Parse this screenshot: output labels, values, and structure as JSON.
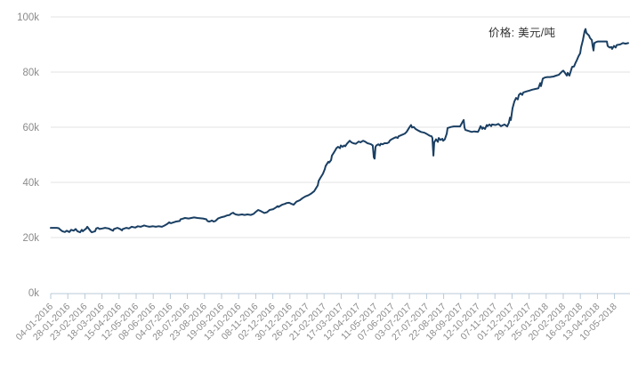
{
  "chart_data": {
    "type": "line",
    "title": "",
    "legend": "价格: 美元/吨",
    "legend_position": "top-right-inside",
    "grid": "horizontal",
    "colors": {
      "line": "#1a3f63",
      "grid": "#e3e3e3",
      "axis": "#b7c9d9",
      "tick_label": "#8b8b8b",
      "legend_text": "#333333",
      "background": "#ffffff"
    },
    "y_axis": {
      "label": "",
      "unit": "美元/吨 (k = ×1000)",
      "ylim_k": [
        0,
        100
      ],
      "ticks": [
        {
          "label": "100k",
          "value": 100
        },
        {
          "label": "80k",
          "value": 80
        },
        {
          "label": "60k",
          "value": 60
        },
        {
          "label": "40k",
          "value": 40
        },
        {
          "label": "20k",
          "value": 20
        },
        {
          "label": "0k",
          "value": 0
        }
      ]
    },
    "x_axis": {
      "label": "",
      "tick_labels": [
        "04-01-2016",
        "28-01-2016",
        "23-02-2016",
        "18-03-2016",
        "15-04-2016",
        "12-05-2016",
        "08-06-2016",
        "04-07-2016",
        "28-07-2016",
        "23-08-2016",
        "19-09-2016",
        "13-10-2016",
        "08-11-2016",
        "02-12-2016",
        "30-12-2016",
        "26-01-2017",
        "21-02-2017",
        "17-03-2017",
        "12-04-2017",
        "11-05-2017",
        "07-06-2017",
        "03-07-2017",
        "27-07-2017",
        "22-08-2017",
        "18-09-2017",
        "12-10-2017",
        "07-11-2017",
        "01-12-2017",
        "29-12-2017",
        "25-01-2018",
        "20-02-2018",
        "16-03-2018",
        "13-04-2018",
        "10-05-2018"
      ]
    },
    "series": [
      {
        "name": "价格: 美元/吨",
        "unit": "美元/吨",
        "values_in": "thousands of USD per ton; x in tick-index units of the date axis",
        "color": "#1a3f63",
        "points": [
          [
            0,
            23.5
          ],
          [
            0.35,
            23.5
          ],
          [
            0.47,
            23.4
          ],
          [
            0.57,
            22.8
          ],
          [
            0.68,
            22.3
          ],
          [
            0.83,
            22.0
          ],
          [
            0.94,
            22.5
          ],
          [
            1.09,
            22.0
          ],
          [
            1.2,
            22.8
          ],
          [
            1.35,
            22.5
          ],
          [
            1.46,
            23.1
          ],
          [
            1.56,
            22.3
          ],
          [
            1.72,
            21.9
          ],
          [
            1.82,
            22.8
          ],
          [
            1.88,
            22.3
          ],
          [
            2.08,
            23.3
          ],
          [
            2.14,
            23.9
          ],
          [
            2.24,
            23.1
          ],
          [
            2.34,
            22.3
          ],
          [
            2.4,
            21.9
          ],
          [
            2.6,
            22.3
          ],
          [
            2.66,
            23.3
          ],
          [
            2.76,
            23.5
          ],
          [
            2.86,
            23.1
          ],
          [
            3.02,
            23.3
          ],
          [
            3.18,
            23.5
          ],
          [
            3.39,
            23.3
          ],
          [
            3.54,
            22.8
          ],
          [
            3.65,
            22.5
          ],
          [
            3.7,
            23.1
          ],
          [
            3.91,
            23.5
          ],
          [
            4.06,
            23.1
          ],
          [
            4.17,
            22.6
          ],
          [
            4.22,
            23.1
          ],
          [
            4.43,
            23.5
          ],
          [
            4.58,
            23.3
          ],
          [
            4.74,
            23.9
          ],
          [
            4.95,
            23.6
          ],
          [
            5.1,
            24.1
          ],
          [
            5.26,
            23.9
          ],
          [
            5.47,
            24.4
          ],
          [
            5.63,
            24.1
          ],
          [
            5.78,
            23.9
          ],
          [
            5.99,
            24.1
          ],
          [
            6.15,
            23.9
          ],
          [
            6.3,
            24.1
          ],
          [
            6.51,
            23.9
          ],
          [
            6.67,
            24.4
          ],
          [
            6.82,
            24.9
          ],
          [
            6.93,
            25.5
          ],
          [
            7.03,
            25.2
          ],
          [
            7.19,
            25.5
          ],
          [
            7.34,
            25.8
          ],
          [
            7.55,
            26.0
          ],
          [
            7.6,
            26.6
          ],
          [
            7.71,
            26.8
          ],
          [
            7.86,
            27.1
          ],
          [
            8.07,
            26.9
          ],
          [
            8.23,
            27.1
          ],
          [
            8.39,
            27.3
          ],
          [
            8.59,
            27.1
          ],
          [
            8.91,
            26.9
          ],
          [
            9.11,
            26.6
          ],
          [
            9.17,
            26.0
          ],
          [
            9.27,
            25.8
          ],
          [
            9.38,
            26.0
          ],
          [
            9.43,
            26.2
          ],
          [
            9.53,
            25.8
          ],
          [
            9.64,
            26.0
          ],
          [
            9.79,
            26.9
          ],
          [
            9.95,
            27.3
          ],
          [
            10.16,
            27.6
          ],
          [
            10.31,
            28.0
          ],
          [
            10.47,
            28.2
          ],
          [
            10.57,
            28.7
          ],
          [
            10.68,
            29.0
          ],
          [
            10.73,
            28.7
          ],
          [
            10.83,
            28.4
          ],
          [
            10.99,
            28.2
          ],
          [
            11.2,
            28.4
          ],
          [
            11.35,
            28.2
          ],
          [
            11.51,
            28.4
          ],
          [
            11.72,
            28.2
          ],
          [
            11.88,
            28.6
          ],
          [
            11.98,
            29.2
          ],
          [
            12.14,
            30.0
          ],
          [
            12.29,
            29.6
          ],
          [
            12.5,
            28.9
          ],
          [
            12.66,
            29.2
          ],
          [
            12.81,
            30.0
          ],
          [
            13.02,
            30.3
          ],
          [
            13.18,
            30.9
          ],
          [
            13.28,
            31.4
          ],
          [
            13.33,
            31.1
          ],
          [
            13.54,
            31.9
          ],
          [
            13.7,
            32.2
          ],
          [
            13.8,
            32.5
          ],
          [
            13.96,
            32.6
          ],
          [
            14.06,
            32.3
          ],
          [
            14.22,
            31.9
          ],
          [
            14.38,
            33.0
          ],
          [
            14.58,
            33.5
          ],
          [
            14.74,
            34.3
          ],
          [
            14.9,
            34.9
          ],
          [
            15.1,
            35.4
          ],
          [
            15.26,
            36.0
          ],
          [
            15.36,
            36.5
          ],
          [
            15.42,
            36.8
          ],
          [
            15.52,
            37.8
          ],
          [
            15.63,
            38.9
          ],
          [
            15.68,
            40.5
          ],
          [
            15.78,
            41.6
          ],
          [
            15.89,
            42.7
          ],
          [
            15.94,
            43.2
          ],
          [
            16.04,
            44.8
          ],
          [
            16.09,
            45.9
          ],
          [
            16.2,
            47.0
          ],
          [
            16.25,
            47.5
          ],
          [
            16.3,
            47.2
          ],
          [
            16.41,
            48.1
          ],
          [
            16.46,
            49.7
          ],
          [
            16.56,
            50.7
          ],
          [
            16.67,
            51.8
          ],
          [
            16.72,
            52.4
          ],
          [
            16.82,
            52.9
          ],
          [
            16.93,
            52.4
          ],
          [
            16.98,
            53.4
          ],
          [
            17.08,
            52.9
          ],
          [
            17.19,
            53.4
          ],
          [
            17.24,
            53.1
          ],
          [
            17.34,
            54.0
          ],
          [
            17.5,
            55.1
          ],
          [
            17.6,
            54.5
          ],
          [
            17.71,
            54.2
          ],
          [
            17.86,
            54.0
          ],
          [
            18.02,
            54.8
          ],
          [
            18.13,
            54.5
          ],
          [
            18.28,
            55.1
          ],
          [
            18.39,
            54.8
          ],
          [
            18.54,
            54.2
          ],
          [
            18.65,
            54.0
          ],
          [
            18.75,
            53.8
          ],
          [
            18.85,
            53.4
          ],
          [
            18.91,
            49.1
          ],
          [
            18.96,
            48.6
          ],
          [
            19.01,
            52.9
          ],
          [
            19.06,
            53.4
          ],
          [
            19.17,
            53.8
          ],
          [
            19.27,
            53.4
          ],
          [
            19.32,
            54.0
          ],
          [
            19.43,
            53.8
          ],
          [
            19.53,
            54.2
          ],
          [
            19.69,
            54.2
          ],
          [
            19.79,
            54.5
          ],
          [
            19.84,
            55.1
          ],
          [
            19.95,
            55.6
          ],
          [
            20.1,
            56.1
          ],
          [
            20.21,
            56.4
          ],
          [
            20.31,
            56.1
          ],
          [
            20.36,
            56.7
          ],
          [
            20.47,
            57.0
          ],
          [
            20.62,
            57.4
          ],
          [
            20.73,
            57.7
          ],
          [
            20.83,
            58.3
          ],
          [
            20.99,
            59.9
          ],
          [
            21.09,
            60.8
          ],
          [
            21.15,
            59.9
          ],
          [
            21.25,
            60.1
          ],
          [
            21.35,
            59.4
          ],
          [
            21.51,
            58.8
          ],
          [
            21.67,
            58.3
          ],
          [
            21.88,
            58.0
          ],
          [
            22.03,
            57.5
          ],
          [
            22.19,
            56.9
          ],
          [
            22.29,
            56.7
          ],
          [
            22.34,
            56.1
          ],
          [
            22.4,
            49.7
          ],
          [
            22.45,
            54.5
          ],
          [
            22.55,
            55.6
          ],
          [
            22.66,
            54.7
          ],
          [
            22.71,
            56.1
          ],
          [
            22.81,
            55.4
          ],
          [
            22.92,
            55.8
          ],
          [
            22.97,
            55.1
          ],
          [
            23.07,
            55.6
          ],
          [
            23.18,
            57.7
          ],
          [
            23.23,
            59.7
          ],
          [
            23.33,
            59.9
          ],
          [
            23.44,
            60.1
          ],
          [
            23.59,
            60.3
          ],
          [
            23.96,
            60.3
          ],
          [
            24.11,
            62.0
          ],
          [
            24.17,
            62.6
          ],
          [
            24.22,
            59.9
          ],
          [
            24.27,
            59.0
          ],
          [
            24.38,
            58.8
          ],
          [
            24.48,
            58.6
          ],
          [
            24.64,
            58.3
          ],
          [
            24.79,
            58.5
          ],
          [
            25.0,
            58.3
          ],
          [
            25.05,
            58.8
          ],
          [
            25.16,
            60.4
          ],
          [
            25.26,
            59.4
          ],
          [
            25.31,
            59.9
          ],
          [
            25.42,
            59.4
          ],
          [
            25.52,
            60.8
          ],
          [
            25.57,
            60.4
          ],
          [
            25.68,
            61.0
          ],
          [
            25.78,
            60.4
          ],
          [
            25.83,
            61.0
          ],
          [
            26.04,
            60.8
          ],
          [
            26.2,
            61.2
          ],
          [
            26.35,
            60.4
          ],
          [
            26.56,
            61.0
          ],
          [
            26.72,
            60.3
          ],
          [
            26.82,
            61.6
          ],
          [
            26.88,
            63.5
          ],
          [
            26.93,
            62.6
          ],
          [
            27.03,
            66.9
          ],
          [
            27.14,
            69.4
          ],
          [
            27.24,
            70.6
          ],
          [
            27.34,
            70.1
          ],
          [
            27.4,
            71.7
          ],
          [
            27.5,
            72.3
          ],
          [
            27.6,
            71.7
          ],
          [
            27.66,
            72.6
          ],
          [
            27.86,
            73.0
          ],
          [
            28.02,
            73.3
          ],
          [
            28.18,
            73.6
          ],
          [
            28.39,
            73.9
          ],
          [
            28.54,
            74.1
          ],
          [
            28.65,
            76.0
          ],
          [
            28.7,
            74.9
          ],
          [
            28.8,
            77.6
          ],
          [
            28.91,
            78.0
          ],
          [
            29.06,
            78.2
          ],
          [
            29.22,
            78.2
          ],
          [
            29.43,
            78.4
          ],
          [
            29.58,
            78.7
          ],
          [
            29.74,
            79.0
          ],
          [
            29.95,
            80.3
          ],
          [
            30.0,
            80.5
          ],
          [
            30.1,
            79.7
          ],
          [
            30.21,
            78.7
          ],
          [
            30.26,
            79.7
          ],
          [
            30.36,
            78.7
          ],
          [
            30.47,
            80.9
          ],
          [
            30.52,
            81.9
          ],
          [
            30.63,
            82.0
          ],
          [
            30.73,
            83.5
          ],
          [
            30.78,
            84.1
          ],
          [
            30.89,
            85.7
          ],
          [
            30.99,
            86.8
          ],
          [
            31.04,
            88.9
          ],
          [
            31.15,
            91.6
          ],
          [
            31.25,
            94.8
          ],
          [
            31.3,
            95.6
          ],
          [
            31.35,
            94.3
          ],
          [
            31.41,
            93.8
          ],
          [
            31.51,
            93.2
          ],
          [
            31.56,
            92.4
          ],
          [
            31.67,
            91.6
          ],
          [
            31.72,
            89.5
          ],
          [
            31.77,
            87.8
          ],
          [
            31.82,
            90.5
          ],
          [
            31.93,
            90.9
          ],
          [
            32.03,
            91.1
          ],
          [
            32.29,
            91.1
          ],
          [
            32.55,
            91.1
          ],
          [
            32.6,
            89.5
          ],
          [
            32.71,
            88.9
          ],
          [
            32.81,
            89.1
          ],
          [
            32.86,
            88.4
          ],
          [
            32.97,
            89.5
          ],
          [
            33.07,
            88.9
          ],
          [
            33.13,
            89.8
          ],
          [
            33.33,
            90.0
          ],
          [
            33.49,
            90.5
          ],
          [
            33.65,
            90.3
          ],
          [
            33.8,
            90.5
          ]
        ]
      }
    ]
  }
}
